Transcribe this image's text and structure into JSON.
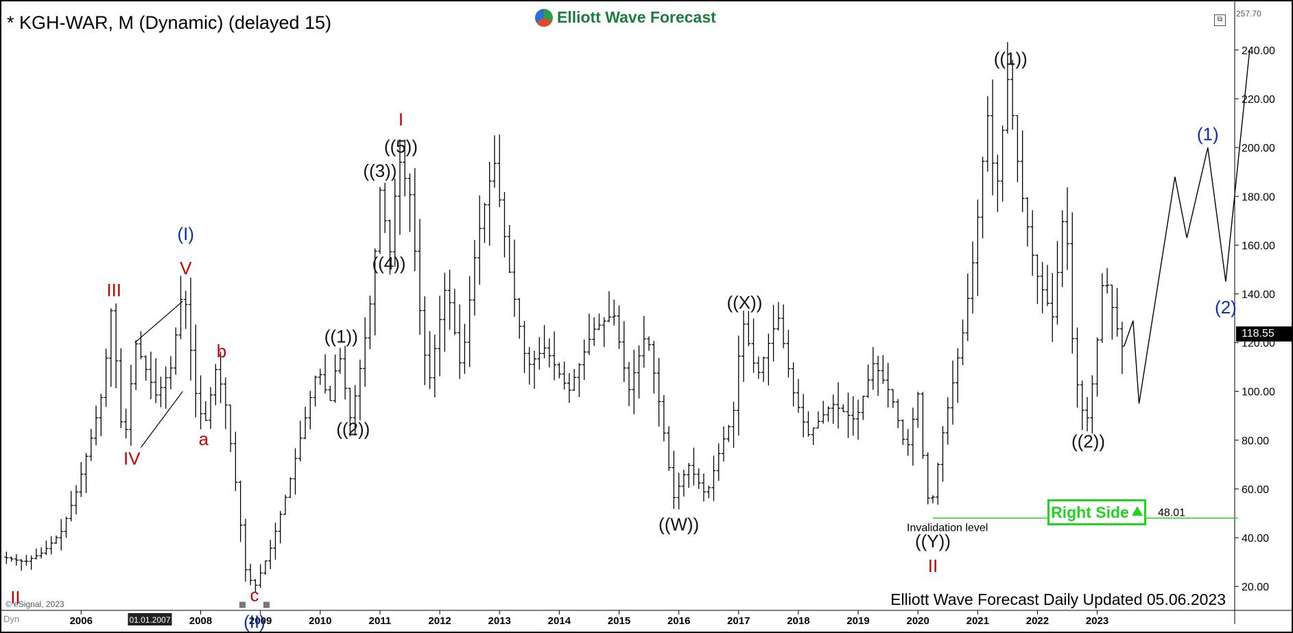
{
  "header": {
    "symbol_title": "* KGH-WAR, M (Dynamic) (delayed 15)",
    "brand": "Elliott Wave Forecast"
  },
  "footer": {
    "caption": "Elliott Wave Forecast Daily Updated 05.06.2023",
    "copyright": "© eSignal, 2023",
    "dyn_label": "Dyn"
  },
  "badges": {
    "right_side": "Right Side",
    "last_price": "118.55",
    "top_price": "257.70",
    "invalidation_value": "48.01",
    "invalidation_text": "Invalidation level",
    "cursor_date": "01.01.2007"
  },
  "chart_data": {
    "type": "ohlc",
    "title": "* KGH-WAR, M (Dynamic) (delayed 15)",
    "y_axis": {
      "ticks": [
        20,
        40,
        60,
        80,
        100,
        120,
        140,
        160,
        180,
        200,
        220,
        240
      ],
      "range": [
        13,
        257.7
      ],
      "position": "right"
    },
    "x_axis": {
      "tick_labels": [
        "2006",
        "2008",
        "2009",
        "2010",
        "2011",
        "2012",
        "2013",
        "2014",
        "2015",
        "2016",
        "2017",
        "2018",
        "2019",
        "2020",
        "2021",
        "2022",
        "2023"
      ],
      "tick_years": [
        2006,
        2008,
        2009,
        2010,
        2011,
        2012,
        2013,
        2014,
        2015,
        2016,
        2017,
        2018,
        2019,
        2020,
        2021,
        2022,
        2023
      ],
      "range_years": [
        2004.7,
        2025.3
      ]
    },
    "price_path": [
      [
        2004.75,
        32
      ],
      [
        2005.1,
        30
      ],
      [
        2005.4,
        34
      ],
      [
        2005.7,
        42
      ],
      [
        2005.95,
        58
      ],
      [
        2006.2,
        80
      ],
      [
        2006.4,
        100
      ],
      [
        2006.55,
        135
      ],
      [
        2006.75,
        75
      ],
      [
        2006.95,
        120
      ],
      [
        2007.3,
        98
      ],
      [
        2007.55,
        110
      ],
      [
        2007.75,
        145
      ],
      [
        2007.95,
        100
      ],
      [
        2008.1,
        85
      ],
      [
        2008.3,
        110
      ],
      [
        2008.45,
        96
      ],
      [
        2008.65,
        58
      ],
      [
        2008.8,
        25
      ],
      [
        2008.95,
        20
      ],
      [
        2009.2,
        35
      ],
      [
        2009.5,
        60
      ],
      [
        2009.8,
        90
      ],
      [
        2010.0,
        110
      ],
      [
        2010.2,
        95
      ],
      [
        2010.35,
        117
      ],
      [
        2010.55,
        88
      ],
      [
        2010.75,
        115
      ],
      [
        2010.9,
        140
      ],
      [
        2011.05,
        185
      ],
      [
        2011.2,
        155
      ],
      [
        2011.35,
        196
      ],
      [
        2011.55,
        180
      ],
      [
        2011.7,
        135
      ],
      [
        2011.85,
        102
      ],
      [
        2012.15,
        145
      ],
      [
        2012.4,
        108
      ],
      [
        2012.65,
        160
      ],
      [
        2012.95,
        195
      ],
      [
        2013.2,
        150
      ],
      [
        2013.5,
        110
      ],
      [
        2013.8,
        118
      ],
      [
        2014.2,
        100
      ],
      [
        2014.6,
        125
      ],
      [
        2014.95,
        132
      ],
      [
        2015.2,
        100
      ],
      [
        2015.5,
        125
      ],
      [
        2015.75,
        90
      ],
      [
        2015.95,
        56
      ],
      [
        2016.2,
        70
      ],
      [
        2016.5,
        57
      ],
      [
        2016.75,
        78
      ],
      [
        2016.95,
        90
      ],
      [
        2017.1,
        130
      ],
      [
        2017.35,
        106
      ],
      [
        2017.7,
        131
      ],
      [
        2017.95,
        100
      ],
      [
        2018.2,
        82
      ],
      [
        2018.6,
        95
      ],
      [
        2019.0,
        88
      ],
      [
        2019.3,
        112
      ],
      [
        2019.6,
        98
      ],
      [
        2019.85,
        75
      ],
      [
        2020.05,
        100
      ],
      [
        2020.15,
        65
      ],
      [
        2020.25,
        50
      ],
      [
        2020.45,
        82
      ],
      [
        2020.8,
        125
      ],
      [
        2021.0,
        160
      ],
      [
        2021.2,
        215
      ],
      [
        2021.35,
        180
      ],
      [
        2021.55,
        230
      ],
      [
        2021.75,
        185
      ],
      [
        2022.0,
        150
      ],
      [
        2022.3,
        130
      ],
      [
        2022.5,
        180
      ],
      [
        2022.65,
        110
      ],
      [
        2022.85,
        85
      ],
      [
        2023.0,
        110
      ],
      [
        2023.15,
        150
      ],
      [
        2023.35,
        128
      ],
      [
        2023.45,
        118.55
      ]
    ],
    "projection_path": [
      [
        2023.45,
        118.55
      ],
      [
        2023.6,
        129
      ],
      [
        2023.7,
        95
      ],
      [
        2024.3,
        188
      ],
      [
        2024.5,
        163
      ],
      [
        2024.85,
        200
      ],
      [
        2025.15,
        145
      ],
      [
        2025.55,
        240
      ]
    ],
    "wedge_lines": [
      [
        [
          2006.9,
          120
        ],
        [
          2007.7,
          137
        ]
      ],
      [
        [
          2007.0,
          77
        ],
        [
          2007.7,
          100
        ]
      ]
    ],
    "invalidation": {
      "level": 48.01,
      "from_year": 2020.25,
      "to_year": 2025.35
    },
    "wave_labels": [
      {
        "text": "II",
        "x": 2004.9,
        "y": 13,
        "color": "#cc0000"
      },
      {
        "text": "III",
        "x": 2006.55,
        "y": 139,
        "color": "#cc0000"
      },
      {
        "text": "IV",
        "x": 2006.85,
        "y": 70,
        "color": "#cc0000"
      },
      {
        "text": "V",
        "x": 2007.75,
        "y": 148,
        "color": "#cc0000"
      },
      {
        "text": "(I)",
        "x": 2007.75,
        "y": 162,
        "color": "#0b2fb5"
      },
      {
        "text": "b",
        "x": 2008.35,
        "y": 114,
        "color": "#cc0000"
      },
      {
        "text": "a",
        "x": 2008.05,
        "y": 78,
        "color": "#cc0000"
      },
      {
        "text": "c",
        "x": 2008.9,
        "y": 14,
        "color": "#cc0000"
      },
      {
        "text": "(II)",
        "x": 2008.9,
        "y": 3,
        "color": "#0b2fb5"
      },
      {
        "text": "((1))",
        "x": 2010.35,
        "y": 120,
        "color": "#111111"
      },
      {
        "text": "((2))",
        "x": 2010.55,
        "y": 82,
        "color": "#111111"
      },
      {
        "text": "((3))",
        "x": 2011.0,
        "y": 188,
        "color": "#111111"
      },
      {
        "text": "((4))",
        "x": 2011.15,
        "y": 150,
        "color": "#111111"
      },
      {
        "text": "((5))",
        "x": 2011.35,
        "y": 198,
        "color": "#111111"
      },
      {
        "text": "I",
        "x": 2011.35,
        "y": 209,
        "color": "#cc0000"
      },
      {
        "text": "((X))",
        "x": 2017.1,
        "y": 134,
        "color": "#111111"
      },
      {
        "text": "((W))",
        "x": 2016.0,
        "y": 43,
        "color": "#111111"
      },
      {
        "text": "((Y))",
        "x": 2020.25,
        "y": 36,
        "color": "#111111"
      },
      {
        "text": "II",
        "x": 2020.25,
        "y": 26,
        "color": "#cc0000"
      },
      {
        "text": "((1))",
        "x": 2021.55,
        "y": 234,
        "color": "#111111"
      },
      {
        "text": "((2))",
        "x": 2022.85,
        "y": 77,
        "color": "#111111"
      },
      {
        "text": "(1)",
        "x": 2024.85,
        "y": 203,
        "color": "#0b2fb5"
      },
      {
        "text": "(2)",
        "x": 2025.15,
        "y": 132,
        "color": "#0b2fb5"
      }
    ]
  },
  "colors": {
    "background": "#ffffff",
    "bars": "#000000",
    "axis": "#000000",
    "invalidation": "#22cc22",
    "brand_green": "#1a7f3c",
    "right_side": "#1fd61f"
  }
}
